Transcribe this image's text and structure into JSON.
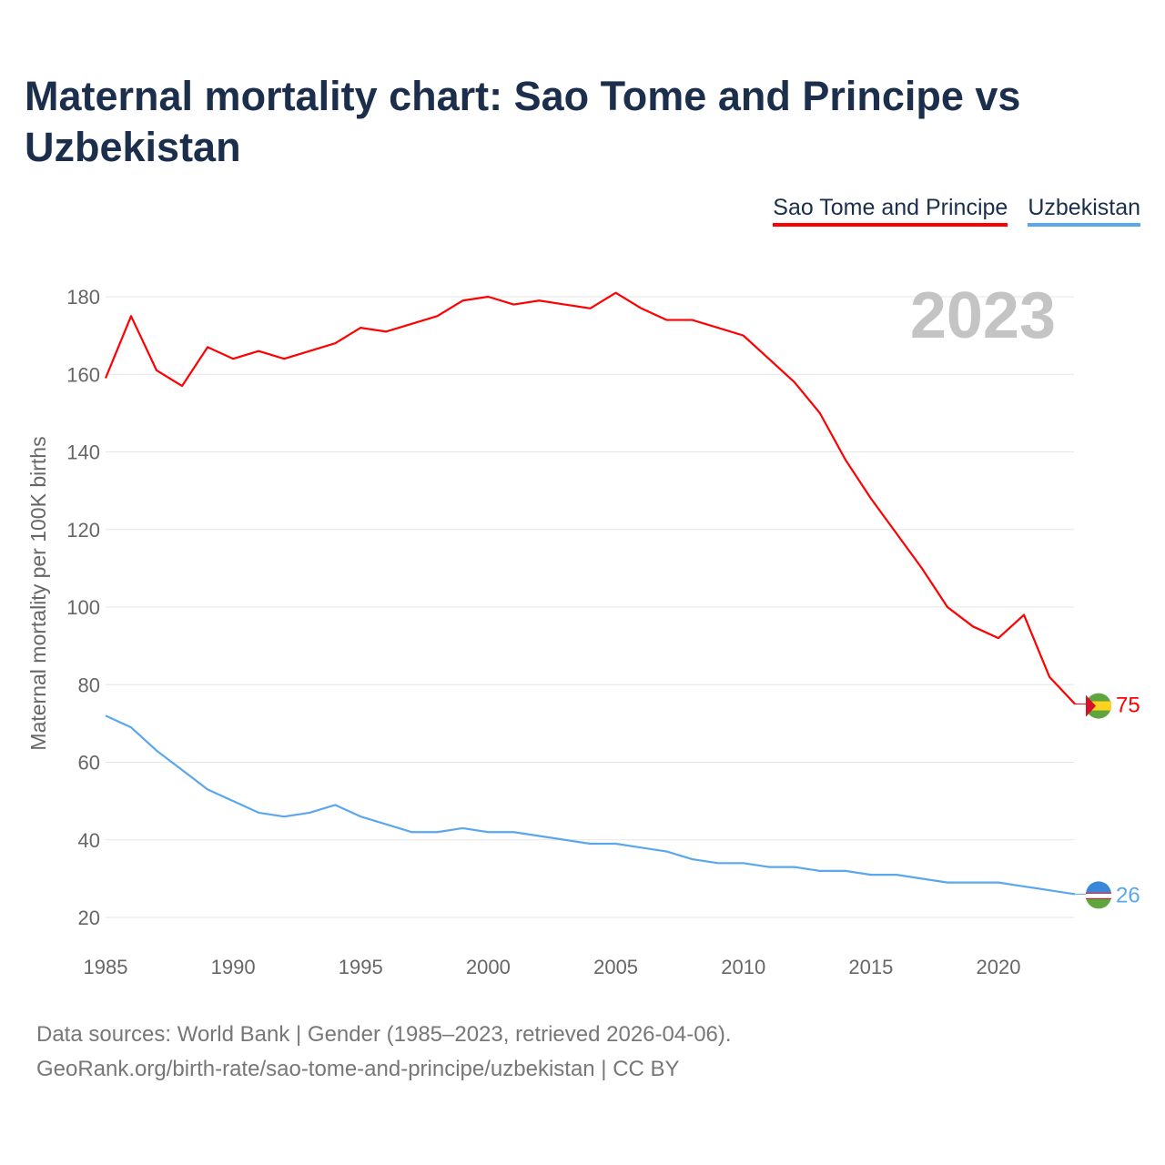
{
  "chart_data": {
    "type": "line",
    "title": "Maternal mortality chart: Sao Tome and Principe vs Uzbekistan",
    "xlabel": "",
    "ylabel": "Maternal mortality per 100K births",
    "xlim": [
      1985,
      2023
    ],
    "ylim": [
      20,
      180
    ],
    "yticks": [
      20,
      40,
      60,
      80,
      100,
      120,
      140,
      160,
      180
    ],
    "xticks": [
      1985,
      1990,
      1995,
      2000,
      2005,
      2010,
      2015,
      2020
    ],
    "year_label": "2023",
    "grid": true,
    "legend_position": "top-right",
    "x": [
      1985,
      1986,
      1987,
      1988,
      1989,
      1990,
      1991,
      1992,
      1993,
      1994,
      1995,
      1996,
      1997,
      1998,
      1999,
      2000,
      2001,
      2002,
      2003,
      2004,
      2005,
      2006,
      2007,
      2008,
      2009,
      2010,
      2011,
      2012,
      2013,
      2014,
      2015,
      2016,
      2017,
      2018,
      2019,
      2020,
      2021,
      2022,
      2023
    ],
    "series": [
      {
        "name": "Sao Tome and Principe",
        "color": "#ff0000",
        "end_label": "75",
        "values": [
          159,
          175,
          161,
          157,
          167,
          164,
          166,
          164,
          166,
          168,
          172,
          171,
          173,
          175,
          179,
          180,
          178,
          179,
          178,
          177,
          181,
          177,
          174,
          174,
          172,
          170,
          164,
          158,
          150,
          138,
          128,
          119,
          110,
          100,
          95,
          92,
          98,
          82,
          75
        ]
      },
      {
        "name": "Uzbekistan",
        "color": "#5ba7ee",
        "end_label": "26",
        "values": [
          72,
          69,
          63,
          58,
          53,
          50,
          47,
          46,
          47,
          49,
          46,
          44,
          42,
          42,
          43,
          42,
          42,
          41,
          40,
          39,
          39,
          38,
          37,
          35,
          34,
          34,
          33,
          33,
          32,
          32,
          31,
          31,
          30,
          29,
          29,
          29,
          28,
          27,
          26
        ]
      }
    ]
  },
  "footer": {
    "line1": "Data sources: World Bank | Gender (1985–2023, retrieved 2026-04-06).",
    "line2": "GeoRank.org/birth-rate/sao-tome-and-principe/uzbekistan | CC BY"
  }
}
